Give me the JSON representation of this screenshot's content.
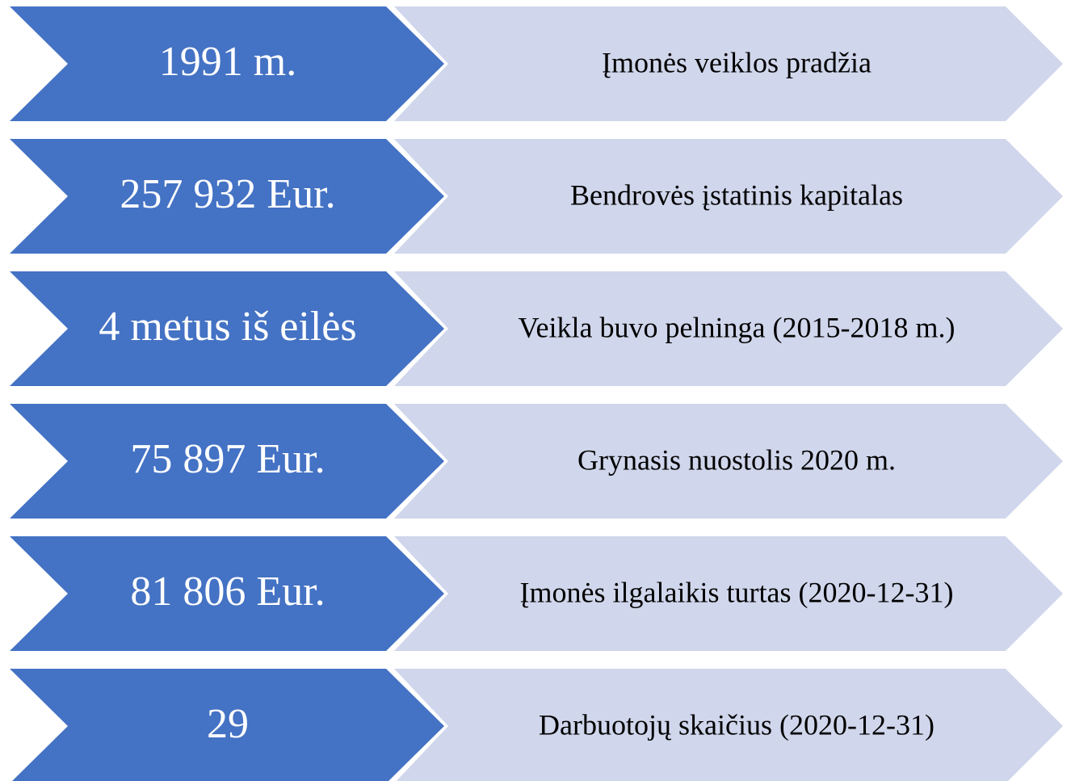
{
  "items": [
    {
      "value": "1991 m.",
      "label": "Įmonės veiklos pradžia"
    },
    {
      "value": "257 932 Eur.",
      "label": "Bendrovės įstatinis kapitalas"
    },
    {
      "value": "4 metus iš eilės",
      "label": "Veikla buvo pelninga (2015-2018 m.)"
    },
    {
      "value": "75 897 Eur.",
      "label": "Grynasis nuostolis 2020 m."
    },
    {
      "value": "81 806 Eur.",
      "label": "Įmonės ilgalaikis turtas (2020-12-31)"
    },
    {
      "value": "29",
      "label": "Darbuotojų skaičius (2020-12-31)"
    }
  ]
}
